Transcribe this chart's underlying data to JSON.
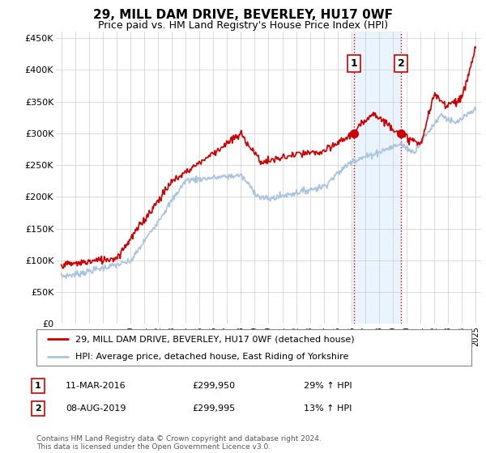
{
  "title": "29, MILL DAM DRIVE, BEVERLEY, HU17 0WF",
  "subtitle": "Price paid vs. HM Land Registry's House Price Index (HPI)",
  "ylim": [
    0,
    460000
  ],
  "yticks": [
    0,
    50000,
    100000,
    150000,
    200000,
    250000,
    300000,
    350000,
    400000,
    450000
  ],
  "ytick_labels": [
    "£0",
    "£50K",
    "£100K",
    "£150K",
    "£200K",
    "£250K",
    "£300K",
    "£350K",
    "£400K",
    "£450K"
  ],
  "hpi_color": "#aac4e0",
  "price_color": "#cc0000",
  "vline_color": "#cc0000",
  "shade_color": "#ddeeff",
  "transaction1_x": 2016.19,
  "transaction1_y": 299950,
  "transaction2_x": 2019.59,
  "transaction2_y": 299995,
  "annotation1_date": "11-MAR-2016",
  "annotation1_price": "£299,950",
  "annotation1_hpi": "29% ↑ HPI",
  "annotation2_date": "08-AUG-2019",
  "annotation2_price": "£299,995",
  "annotation2_hpi": "13% ↑ HPI",
  "legend_line1": "29, MILL DAM DRIVE, BEVERLEY, HU17 0WF (detached house)",
  "legend_line2": "HPI: Average price, detached house, East Riding of Yorkshire",
  "footer": "Contains HM Land Registry data © Crown copyright and database right 2024.\nThis data is licensed under the Open Government Licence v3.0.",
  "shade_x_start": 2016.19,
  "shade_x_end": 2019.59,
  "xlim_left": 1994.6,
  "xlim_right": 2025.4
}
